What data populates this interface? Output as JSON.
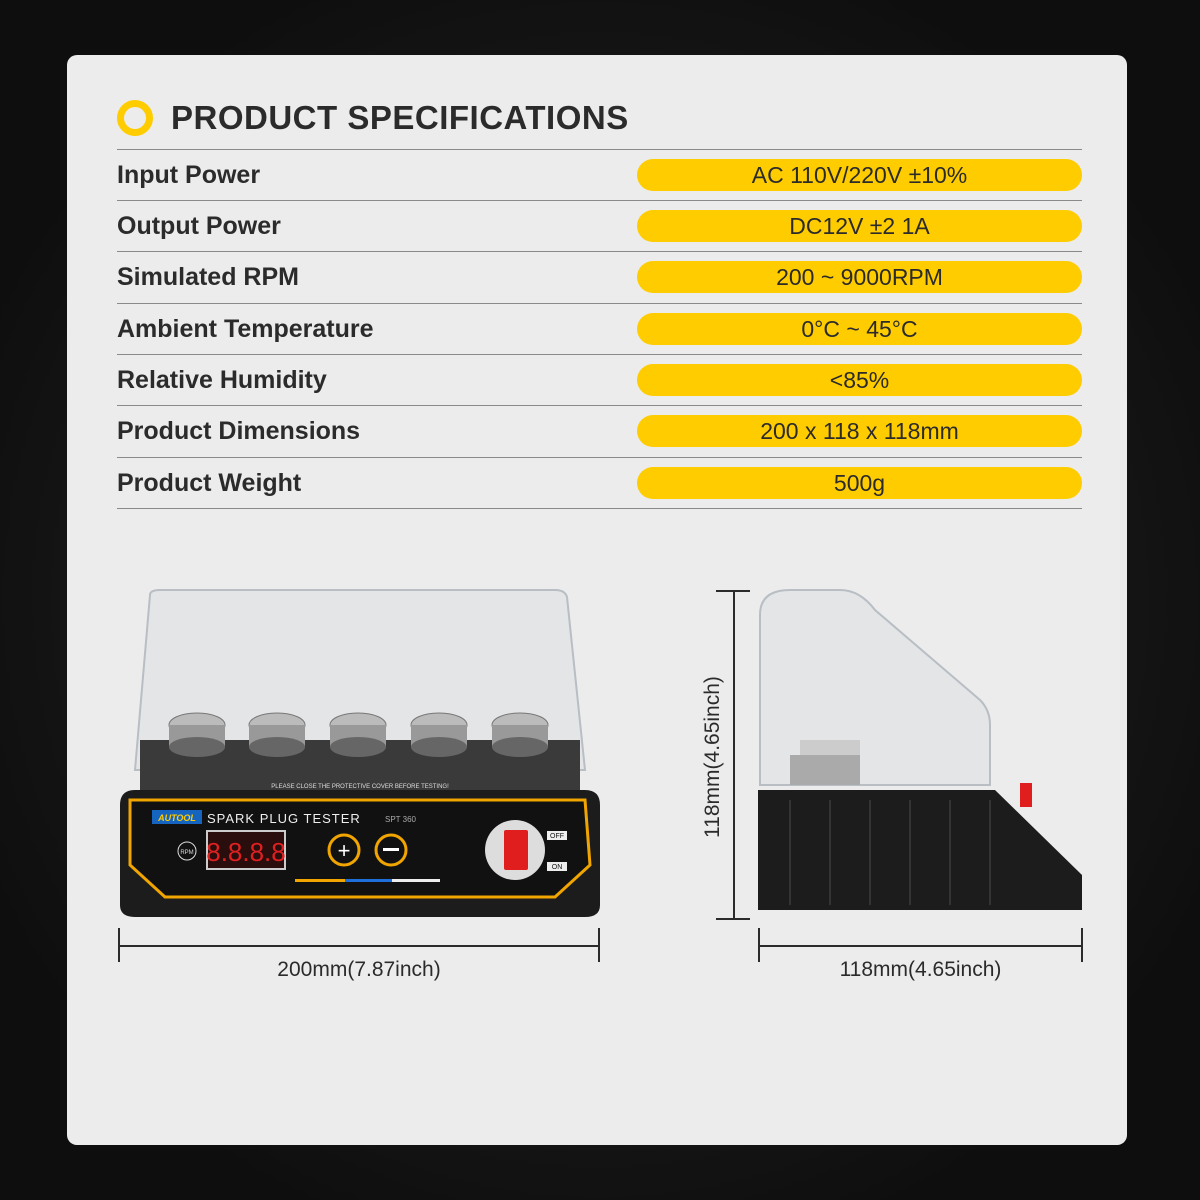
{
  "header": {
    "title": "PRODUCT SPECIFICATIONS",
    "accent_color": "#ffcc00"
  },
  "specs": [
    {
      "label": "Input Power",
      "value": "AC 110V/220V ±10%"
    },
    {
      "label": "Output Power",
      "value": "DC12V ±2 1A"
    },
    {
      "label": "Simulated RPM",
      "value": "200 ~ 9000RPM"
    },
    {
      "label": "Ambient Temperature",
      "value": "0°C ~ 45°C"
    },
    {
      "label": "Relative Humidity",
      "value": "<85%"
    },
    {
      "label": "Product Dimensions",
      "value": "200 x 118 x 118mm"
    },
    {
      "label": "Product Weight",
      "value": "500g"
    }
  ],
  "product": {
    "brand": "AUTOOL",
    "name": "SPARK PLUG TESTER",
    "model": "SPT 360",
    "display": "8.8.8.8",
    "rpm_label": "RPM",
    "switch_off": "OFF",
    "switch_on": "ON",
    "warning": "PLEASE CLOSE THE PROTECTIVE COVER BEFORE TESTING!"
  },
  "dimensions": {
    "front_width": "200mm(7.87inch)",
    "side_height": "118mm(4.65inch)",
    "side_depth": "118mm(4.65inch)"
  }
}
